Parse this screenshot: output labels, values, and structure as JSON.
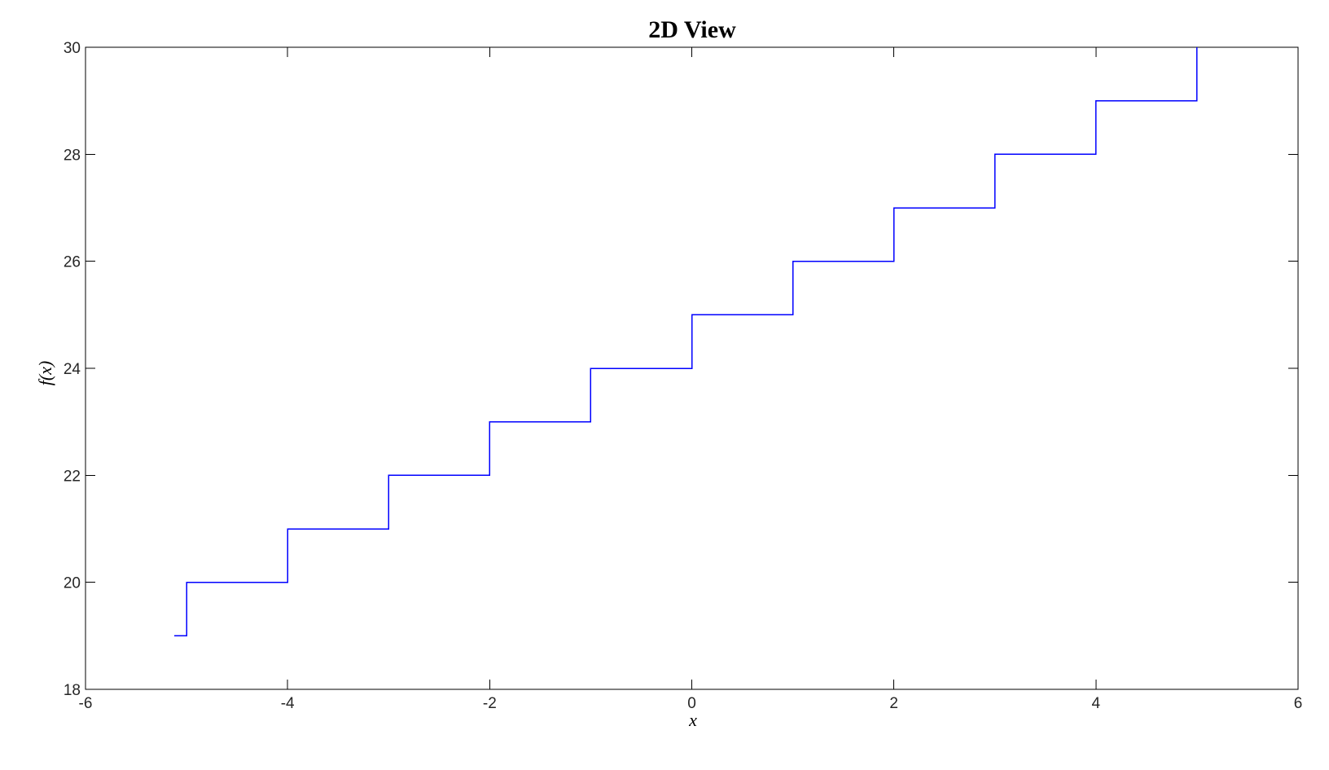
{
  "figure": {
    "background": "#FFFFFF"
  },
  "chart_data": {
    "type": "line",
    "subtype": "staircase-step",
    "title": "2D View",
    "xlabel": "x",
    "ylabel": "f(x)",
    "xlim": [
      -6,
      6
    ],
    "ylim": [
      18,
      30
    ],
    "x_ticks": [
      -6,
      -4,
      -2,
      0,
      2,
      4,
      6
    ],
    "y_ticks": [
      18,
      20,
      22,
      24,
      26,
      28,
      30
    ],
    "grid": false,
    "legend": "none",
    "line_color": "#0000FF",
    "axis_color": "#000000",
    "series": [
      {
        "name": "f(x)",
        "points": [
          [
            -5.12,
            19
          ],
          [
            -5,
            19
          ],
          [
            -5,
            20
          ],
          [
            -4,
            20
          ],
          [
            -4,
            21
          ],
          [
            -3,
            21
          ],
          [
            -3,
            22
          ],
          [
            -2,
            22
          ],
          [
            -2,
            23
          ],
          [
            -1,
            23
          ],
          [
            -1,
            24
          ],
          [
            0,
            24
          ],
          [
            0,
            25
          ],
          [
            1,
            25
          ],
          [
            1,
            26
          ],
          [
            2,
            26
          ],
          [
            2,
            27
          ],
          [
            3,
            27
          ],
          [
            3,
            28
          ],
          [
            4,
            28
          ],
          [
            4,
            29
          ],
          [
            5,
            29
          ],
          [
            5,
            30
          ]
        ]
      }
    ]
  }
}
